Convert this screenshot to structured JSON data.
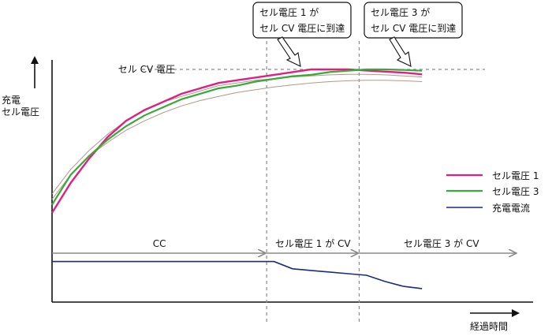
{
  "chart_data": {
    "type": "line",
    "title": "",
    "ylabel_lines": [
      "充電",
      "セル電圧"
    ],
    "xlabel": "経過時間",
    "cv_label": "セル CV 電圧",
    "x": [
      0,
      5,
      10,
      15,
      20,
      25,
      30,
      35,
      40,
      45,
      50,
      55,
      60,
      65,
      70,
      75,
      80,
      85,
      90,
      95,
      100
    ],
    "xlim": [
      0,
      130
    ],
    "ylim": [
      0,
      100
    ],
    "cv_level": 86,
    "t_cell1_cv": 58,
    "t_cell3_cv": 83,
    "series": [
      {
        "name": "セル電圧 1",
        "color": "#e0207f",
        "values": [
          33,
          44,
          53,
          61,
          67,
          71,
          74,
          77,
          79,
          81,
          82,
          83,
          84,
          85,
          86,
          86,
          86,
          85.6,
          85.2,
          84.8,
          84.2
        ]
      },
      {
        "name": "セル電圧 3",
        "color": "#3aa93a",
        "values": [
          36,
          47,
          54,
          60,
          65,
          69,
          72,
          75,
          77,
          79,
          80,
          81.5,
          82.5,
          83.5,
          84,
          85,
          85.5,
          86,
          86,
          85.8,
          85.5
        ]
      },
      {
        "name": "充電電流",
        "color": "#1c2a80",
        "values": [
          15,
          15,
          15,
          15,
          15,
          15,
          15,
          15,
          15,
          15,
          15,
          15,
          15,
          12.3,
          11.7,
          11.1,
          10.5,
          9.9,
          7.6,
          5.8,
          5.0
        ]
      }
    ],
    "other_cells": [
      {
        "color": "#b49888",
        "values": [
          40,
          49,
          56,
          62,
          67,
          71,
          74,
          76,
          78,
          80,
          81,
          82,
          82.6,
          83.2,
          83.6,
          84,
          84.2,
          84.2,
          84,
          83.6,
          83.2
        ]
      },
      {
        "color": "#b49888",
        "values": [
          38,
          47,
          54,
          59,
          63.5,
          67,
          70,
          72.5,
          74.5,
          76,
          77.5,
          78.5,
          79.5,
          80.3,
          81,
          81.5,
          81.8,
          82,
          82,
          81.8,
          81.5
        ]
      }
    ],
    "callouts": [
      {
        "lines": [
          "セル電圧 1 が",
          "セル CV 電圧に到達"
        ]
      },
      {
        "lines": [
          "セル電圧 3 が",
          "セル CV 電圧に到達"
        ]
      }
    ],
    "phases": [
      {
        "label": "CC"
      },
      {
        "label": "セル電圧 1 が CV"
      },
      {
        "label": "セル電圧 3 が CV"
      }
    ],
    "legend_position": "right",
    "grid": false
  }
}
